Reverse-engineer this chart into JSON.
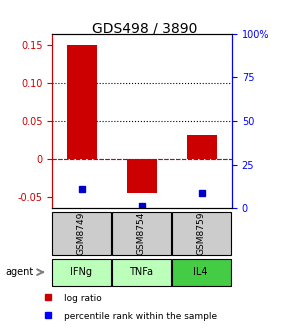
{
  "title": "GDS498 / 3890",
  "samples": [
    "GSM8749",
    "GSM8754",
    "GSM8759"
  ],
  "agents": [
    "IFNg",
    "TNFa",
    "IL4"
  ],
  "log_ratios": [
    0.15,
    -0.045,
    0.032
  ],
  "percentile_ranks": [
    0.113,
    0.015,
    0.088
  ],
  "bar_color": "#cc0000",
  "dot_color": "#0000cc",
  "ylim_left": [
    -0.065,
    0.165
  ],
  "ylim_right": [
    0,
    100
  ],
  "yticks_left": [
    -0.05,
    0.0,
    0.05,
    0.1,
    0.15
  ],
  "yticks_right": [
    0,
    25,
    50,
    75,
    100
  ],
  "ytick_labels_left": [
    "-0.05",
    "0",
    "0.05",
    "0.10",
    "0.15"
  ],
  "ytick_labels_right": [
    "0",
    "25",
    "50",
    "75",
    "100%"
  ],
  "grid_yticks": [
    0.0,
    0.05,
    0.1
  ],
  "zero_line_y": 0.0,
  "sample_box_color": "#cccccc",
  "agent_colors": [
    "#bbffbb",
    "#bbffbb",
    "#44cc44"
  ],
  "legend_log_ratio_label": "log ratio",
  "legend_percentile_label": "percentile rank within the sample",
  "bar_width": 0.5,
  "x_positions": [
    1,
    2,
    3
  ],
  "percentile_scale": 0.0006
}
